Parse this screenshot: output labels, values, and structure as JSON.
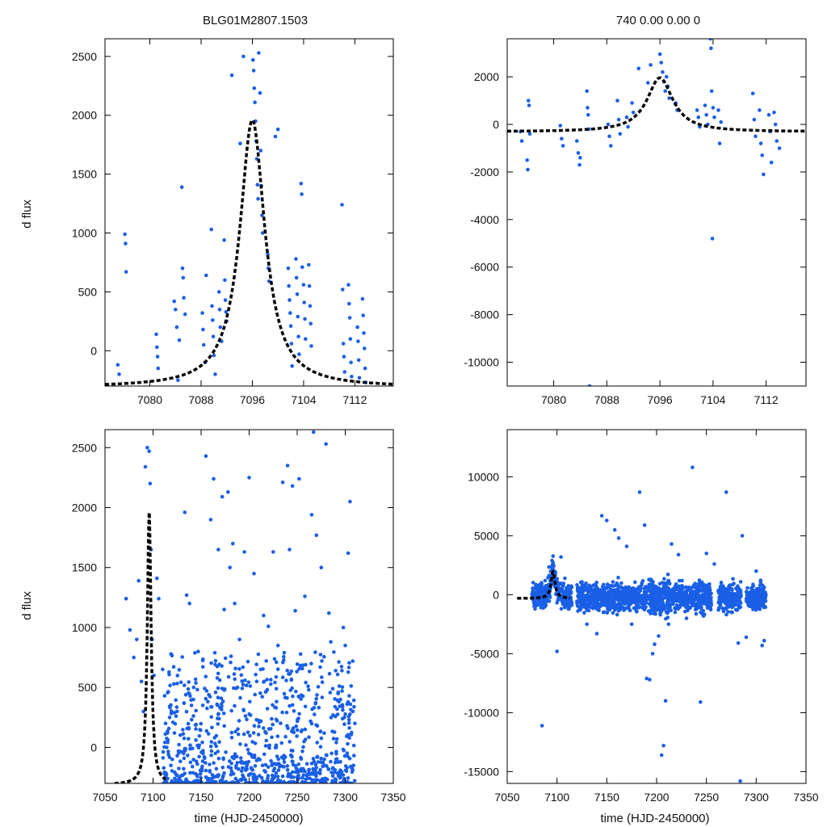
{
  "figure": {
    "title_left": "BLG01M2807.1503",
    "title_right": "740  0.00  0.00  0",
    "ylabel": "d flux",
    "xlabel": "time (HJD-2450000)"
  },
  "colors": {
    "points": "#1a5fe6",
    "model": "#000000",
    "axes": "#000000"
  },
  "model": {
    "t0": 7096.0,
    "peak": 1960,
    "baseline": -310,
    "tau": 3.0
  },
  "chart_data": [
    {
      "type": "scatter",
      "name": "top-left",
      "title": "BLG01M2807.1503",
      "ylabel": "d flux",
      "xlabel": "",
      "xlim": [
        7073,
        7118
      ],
      "ylim": [
        -300,
        2650
      ],
      "xticks": [
        7080,
        7088,
        7096,
        7104,
        7112
      ],
      "yticks": [
        0,
        500,
        1000,
        1500,
        2000,
        2500
      ],
      "points": [
        [
          7075.0,
          -120
        ],
        [
          7075.2,
          -200
        ],
        [
          7076.1,
          990
        ],
        [
          7076.2,
          910
        ],
        [
          7076.3,
          670
        ],
        [
          7081.0,
          140
        ],
        [
          7081.1,
          30
        ],
        [
          7081.2,
          -50
        ],
        [
          7081.3,
          -150
        ],
        [
          7083.8,
          420
        ],
        [
          7084.0,
          350
        ],
        [
          7084.2,
          200
        ],
        [
          7084.4,
          -250
        ],
        [
          7084.6,
          90
        ],
        [
          7085.0,
          1390
        ],
        [
          7085.1,
          700
        ],
        [
          7085.2,
          620
        ],
        [
          7085.3,
          450
        ],
        [
          7085.5,
          310
        ],
        [
          7088.2,
          320
        ],
        [
          7088.3,
          180
        ],
        [
          7088.4,
          50
        ],
        [
          7088.6,
          -100
        ],
        [
          7088.8,
          640
        ],
        [
          7089.6,
          1030
        ],
        [
          7089.7,
          380
        ],
        [
          7089.8,
          260
        ],
        [
          7089.9,
          120
        ],
        [
          7090.0,
          -40
        ],
        [
          7090.2,
          -200
        ],
        [
          7090.8,
          500
        ],
        [
          7090.9,
          350
        ],
        [
          7091.0,
          200
        ],
        [
          7091.2,
          80
        ],
        [
          7091.6,
          940
        ],
        [
          7091.7,
          600
        ],
        [
          7091.8,
          430
        ],
        [
          7091.9,
          330
        ],
        [
          7092.0,
          250
        ],
        [
          7092.8,
          2340
        ],
        [
          7094.1,
          1760
        ],
        [
          7094.6,
          2500
        ],
        [
          7096.1,
          2470
        ],
        [
          7096.2,
          2380
        ],
        [
          7096.3,
          2230
        ],
        [
          7096.4,
          2110
        ],
        [
          7096.5,
          1950
        ],
        [
          7096.6,
          1780
        ],
        [
          7096.7,
          1630
        ],
        [
          7096.8,
          1410
        ],
        [
          7096.9,
          1290
        ],
        [
          7097.0,
          2530
        ],
        [
          7097.2,
          2190
        ],
        [
          7097.3,
          1700
        ],
        [
          7097.4,
          1400
        ],
        [
          7097.5,
          1150
        ],
        [
          7097.6,
          1000
        ],
        [
          7098.4,
          820
        ],
        [
          7098.5,
          700
        ],
        [
          7098.6,
          590
        ],
        [
          7099.6,
          1820
        ],
        [
          7100.0,
          1880
        ],
        [
          7101.6,
          700
        ],
        [
          7101.7,
          550
        ],
        [
          7101.8,
          430
        ],
        [
          7101.9,
          320
        ],
        [
          7102.0,
          210
        ],
        [
          7102.1,
          60
        ],
        [
          7102.2,
          -130
        ],
        [
          7102.8,
          780
        ],
        [
          7102.9,
          620
        ],
        [
          7103.0,
          480
        ],
        [
          7103.1,
          290
        ],
        [
          7103.2,
          120
        ],
        [
          7103.3,
          -30
        ],
        [
          7103.6,
          1420
        ],
        [
          7103.7,
          1330
        ],
        [
          7103.8,
          710
        ],
        [
          7104.0,
          560
        ],
        [
          7104.1,
          410
        ],
        [
          7104.2,
          270
        ],
        [
          7104.3,
          100
        ],
        [
          7104.8,
          730
        ],
        [
          7104.9,
          550
        ],
        [
          7105.0,
          380
        ],
        [
          7105.1,
          230
        ],
        [
          7105.2,
          40
        ],
        [
          7110.0,
          1240
        ],
        [
          7110.1,
          520
        ],
        [
          7110.2,
          60
        ],
        [
          7110.3,
          -50
        ],
        [
          7110.4,
          -180
        ],
        [
          7111.0,
          560
        ],
        [
          7111.1,
          400
        ],
        [
          7111.2,
          280
        ],
        [
          7111.3,
          100
        ],
        [
          7111.4,
          -100
        ],
        [
          7111.5,
          -220
        ],
        [
          7112.4,
          200
        ],
        [
          7112.5,
          80
        ],
        [
          7112.6,
          -80
        ],
        [
          7112.7,
          -230
        ],
        [
          7113.2,
          440
        ],
        [
          7113.3,
          300
        ],
        [
          7113.4,
          150
        ],
        [
          7113.5,
          20
        ],
        [
          7113.6,
          -150
        ],
        [
          7113.7,
          -270
        ]
      ]
    },
    {
      "type": "scatter",
      "name": "top-right",
      "title": "740  0.00  0.00  0",
      "ylabel": "",
      "xlabel": "",
      "xlim": [
        7073,
        7118
      ],
      "ylim": [
        -11000,
        3600
      ],
      "xticks": [
        7080,
        7088,
        7096,
        7104,
        7112
      ],
      "yticks": [
        -10000,
        -8000,
        -6000,
        -4000,
        -2000,
        0,
        2000
      ],
      "points": [
        [
          7075.0,
          -300
        ],
        [
          7075.2,
          -700
        ],
        [
          7076.0,
          -1500
        ],
        [
          7076.1,
          -1900
        ],
        [
          7076.2,
          1000
        ],
        [
          7076.3,
          800
        ],
        [
          7076.4,
          -400
        ],
        [
          7081.0,
          -50
        ],
        [
          7081.2,
          -600
        ],
        [
          7081.4,
          -900
        ],
        [
          7083.5,
          -700
        ],
        [
          7083.7,
          -1200
        ],
        [
          7083.9,
          -1700
        ],
        [
          7084.0,
          -1400
        ],
        [
          7085.0,
          1400
        ],
        [
          7085.1,
          700
        ],
        [
          7085.2,
          400
        ],
        [
          7085.3,
          -200
        ],
        [
          7085.4,
          -11000
        ],
        [
          7088.2,
          0
        ],
        [
          7088.4,
          -500
        ],
        [
          7088.6,
          -900
        ],
        [
          7089.6,
          1000
        ],
        [
          7089.8,
          200
        ],
        [
          7090.0,
          -400
        ],
        [
          7091.0,
          300
        ],
        [
          7091.2,
          -100
        ],
        [
          7091.8,
          900
        ],
        [
          7092.0,
          500
        ],
        [
          7092.8,
          2350
        ],
        [
          7094.2,
          1750
        ],
        [
          7094.6,
          2500
        ],
        [
          7096.0,
          2950
        ],
        [
          7096.2,
          2600
        ],
        [
          7096.4,
          2200
        ],
        [
          7096.6,
          1800
        ],
        [
          7096.8,
          1400
        ],
        [
          7097.0,
          2000
        ],
        [
          7097.2,
          1600
        ],
        [
          7097.4,
          1100
        ],
        [
          7098.4,
          900
        ],
        [
          7098.6,
          600
        ],
        [
          7101.6,
          600
        ],
        [
          7101.8,
          300
        ],
        [
          7102.0,
          -100
        ],
        [
          7102.8,
          800
        ],
        [
          7103.0,
          400
        ],
        [
          7103.2,
          0
        ],
        [
          7103.6,
          3600
        ],
        [
          7103.7,
          3200
        ],
        [
          7103.8,
          1400
        ],
        [
          7103.9,
          -4800
        ],
        [
          7104.0,
          700
        ],
        [
          7104.2,
          300
        ],
        [
          7104.8,
          600
        ],
        [
          7105.0,
          -800
        ],
        [
          7105.2,
          100
        ],
        [
          7110.0,
          1300
        ],
        [
          7110.2,
          200
        ],
        [
          7110.4,
          -500
        ],
        [
          7111.0,
          600
        ],
        [
          7111.2,
          -800
        ],
        [
          7111.4,
          -1300
        ],
        [
          7111.6,
          -2100
        ],
        [
          7112.4,
          400
        ],
        [
          7112.6,
          -300
        ],
        [
          7112.8,
          -1600
        ],
        [
          7113.2,
          500
        ],
        [
          7113.4,
          0
        ],
        [
          7113.6,
          -700
        ],
        [
          7114.0,
          -1000
        ]
      ]
    },
    {
      "type": "scatter",
      "name": "bottom-left",
      "title": "",
      "ylabel": "d flux",
      "xlabel": "time (HJD-2450000)",
      "xlim": [
        7050,
        7350
      ],
      "ylim": [
        -300,
        2650
      ],
      "xticks": [
        7050,
        7100,
        7150,
        7200,
        7250,
        7300,
        7350
      ],
      "yticks": [
        0,
        500,
        1000,
        1500,
        2000,
        2500
      ],
      "points": [
        [
          7072,
          1240
        ],
        [
          7076,
          980
        ],
        [
          7080,
          750
        ],
        [
          7083,
          900
        ],
        [
          7085,
          1390
        ],
        [
          7088,
          550
        ],
        [
          7090,
          300
        ],
        [
          7092,
          2340
        ],
        [
          7094,
          2500
        ],
        [
          7096,
          2470
        ],
        [
          7097,
          2200
        ],
        [
          7098,
          1650
        ],
        [
          7099,
          900
        ],
        [
          7101,
          600
        ],
        [
          7104,
          1410
        ],
        [
          7106,
          1240
        ],
        [
          7110,
          650
        ],
        [
          7112,
          430
        ],
        [
          7113,
          200
        ],
        [
          7115,
          120
        ],
        [
          7120,
          -100
        ],
        [
          7125,
          300
        ],
        [
          7133,
          1960
        ],
        [
          7135,
          1270
        ],
        [
          7138,
          1200
        ],
        [
          7142,
          400
        ],
        [
          7147,
          800
        ],
        [
          7152,
          -50
        ],
        [
          7155,
          2430
        ],
        [
          7160,
          1900
        ],
        [
          7163,
          2240
        ],
        [
          7168,
          1650
        ],
        [
          7172,
          2090
        ],
        [
          7174,
          1150
        ],
        [
          7178,
          2130
        ],
        [
          7180,
          1500
        ],
        [
          7183,
          1700
        ],
        [
          7185,
          1200
        ],
        [
          7190,
          900
        ],
        [
          7195,
          1630
        ],
        [
          7200,
          2250
        ],
        [
          7205,
          1450
        ],
        [
          7212,
          650
        ],
        [
          7215,
          1100
        ],
        [
          7220,
          1010
        ],
        [
          7225,
          1630
        ],
        [
          7230,
          850
        ],
        [
          7235,
          2210
        ],
        [
          7240,
          2350
        ],
        [
          7242,
          1650
        ],
        [
          7245,
          2180
        ],
        [
          7248,
          1140
        ],
        [
          7252,
          2240
        ],
        [
          7258,
          1260
        ],
        [
          7262,
          480
        ],
        [
          7265,
          1940
        ],
        [
          7267,
          2630
        ],
        [
          7270,
          1770
        ],
        [
          7275,
          1500
        ],
        [
          7280,
          2530
        ],
        [
          7283,
          1120
        ],
        [
          7285,
          880
        ],
        [
          7290,
          640
        ],
        [
          7295,
          400
        ],
        [
          7298,
          1000
        ],
        [
          7300,
          850
        ],
        [
          7303,
          1620
        ],
        [
          7305,
          2050
        ],
        [
          7308,
          300
        ],
        [
          7310,
          200
        ]
      ]
    },
    {
      "type": "scatter",
      "name": "bottom-right",
      "title": "",
      "ylabel": "",
      "xlabel": "time (HJD-2450000)",
      "xlim": [
        7050,
        7350
      ],
      "ylim": [
        -16000,
        14000
      ],
      "xticks": [
        7050,
        7100,
        7150,
        7200,
        7250,
        7300,
        7350
      ],
      "yticks": [
        -15000,
        -10000,
        -5000,
        0,
        5000,
        10000
      ],
      "points": [
        [
          7078,
          -1200
        ],
        [
          7080,
          500
        ],
        [
          7082,
          -600
        ],
        [
          7085,
          -11100
        ],
        [
          7088,
          1200
        ],
        [
          7092,
          2350
        ],
        [
          7095,
          2900
        ],
        [
          7097,
          1800
        ],
        [
          7100,
          -4800
        ],
        [
          7104,
          3200
        ],
        [
          7108,
          1400
        ],
        [
          7112,
          -1200
        ],
        [
          7130,
          -2500
        ],
        [
          7140,
          -3300
        ],
        [
          7145,
          6700
        ],
        [
          7150,
          6300
        ],
        [
          7158,
          5500
        ],
        [
          7162,
          4800
        ],
        [
          7170,
          4100
        ],
        [
          7175,
          -2500
        ],
        [
          7183,
          8700
        ],
        [
          7188,
          5900
        ],
        [
          7190,
          -7100
        ],
        [
          7193,
          -7200
        ],
        [
          7196,
          -5000
        ],
        [
          7198,
          -4200
        ],
        [
          7202,
          -3500
        ],
        [
          7205,
          -13600
        ],
        [
          7207,
          -12800
        ],
        [
          7209,
          -9000
        ],
        [
          7212,
          -2500
        ],
        [
          7215,
          4300
        ],
        [
          7222,
          3400
        ],
        [
          7230,
          -2000
        ],
        [
          7236,
          10800
        ],
        [
          7244,
          -9100
        ],
        [
          7250,
          3500
        ],
        [
          7258,
          2600
        ],
        [
          7270,
          8700
        ],
        [
          7276,
          -1500
        ],
        [
          7282,
          -4100
        ],
        [
          7284,
          -15800
        ],
        [
          7286,
          5000
        ],
        [
          7290,
          -3600
        ],
        [
          7300,
          2000
        ],
        [
          7306,
          -4300
        ],
        [
          7308,
          -3900
        ]
      ],
      "noise_bands": [
        {
          "range": [
            7075,
            7115
          ],
          "sigma": 700
        },
        {
          "range": [
            7120,
            7135
          ],
          "sigma": 800
        },
        {
          "range": [
            7136,
            7155
          ],
          "sigma": 900
        },
        {
          "range": [
            7156,
            7175
          ],
          "sigma": 800
        },
        {
          "range": [
            7176,
            7190
          ],
          "sigma": 700
        },
        {
          "range": [
            7191,
            7215
          ],
          "sigma": 1100
        },
        {
          "range": [
            7216,
            7230
          ],
          "sigma": 700
        },
        {
          "range": [
            7231,
            7255
          ],
          "sigma": 900
        },
        {
          "range": [
            7262,
            7285
          ],
          "sigma": 800
        },
        {
          "range": [
            7290,
            7310
          ],
          "sigma": 700
        }
      ]
    }
  ]
}
